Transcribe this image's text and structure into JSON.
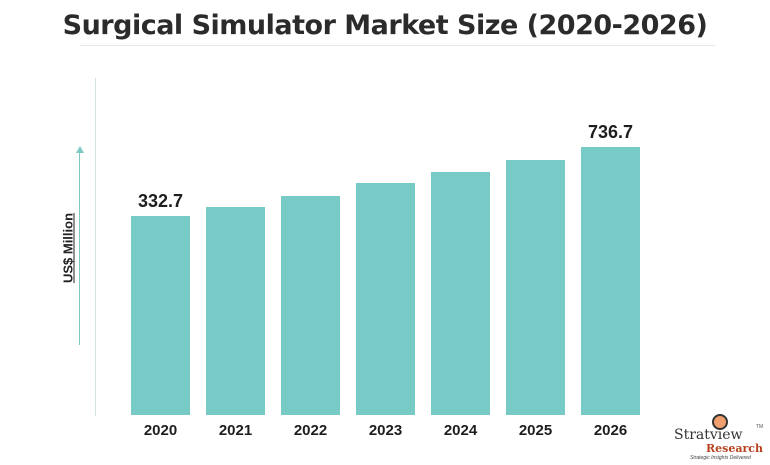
{
  "chart_data": {
    "type": "bar",
    "title": "Surgical Simulator Market Size (2020-2026)",
    "xlabel": "",
    "ylabel": "US$ Million",
    "categories": [
      "2020",
      "2021",
      "2022",
      "2023",
      "2024",
      "2025",
      "2026"
    ],
    "values": [
      332.7,
      385,
      452,
      523,
      588,
      659,
      736.7
    ],
    "data_labels": {
      "0": "332.7",
      "6": "736.7"
    },
    "bar_color": "#78cac6",
    "grid": false
  },
  "logo": {
    "name": "Stratview",
    "tm": "TM",
    "sub": "Research",
    "tagline": "Strategic Insights Delivered"
  }
}
